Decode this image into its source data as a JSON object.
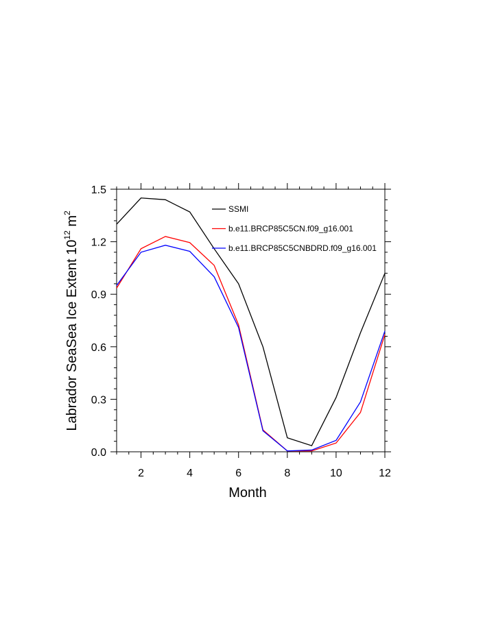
{
  "chart_data": {
    "type": "line",
    "title": "",
    "xlabel": "Month",
    "ylabel": {
      "main": "Labrador SeaSea Ice Extent 10",
      "exponent": "12",
      "unit": " m",
      "unit_exponent": "2"
    },
    "xlim": [
      1,
      12
    ],
    "ylim": [
      0,
      1.5
    ],
    "x": [
      1,
      2,
      3,
      4,
      5,
      6,
      7,
      8,
      9,
      10,
      11,
      12
    ],
    "x_ticks": [
      2,
      4,
      6,
      8,
      10,
      12
    ],
    "x_tick_labels": [
      "2",
      "4",
      "6",
      "8",
      "10",
      "12"
    ],
    "y_ticks": [
      0,
      0.3,
      0.6,
      0.9,
      1.2,
      1.5
    ],
    "y_tick_labels": [
      "0.0",
      "0.3",
      "0.6",
      "0.9",
      "1.2",
      "1.5"
    ],
    "grid": false,
    "legend_position": "top-right",
    "series": [
      {
        "name": "SSMI",
        "color": "#000000",
        "values": [
          1.3,
          1.45,
          1.44,
          1.37,
          1.16,
          0.96,
          0.6,
          0.08,
          0.035,
          0.31,
          0.68,
          1.02
        ]
      },
      {
        "name": "b.e11.BRCP85C5CN.f09_g16.001",
        "color": "#ff0000",
        "values": [
          0.935,
          1.16,
          1.23,
          1.195,
          1.065,
          0.725,
          0.125,
          0.005,
          0.005,
          0.05,
          0.225,
          0.67
        ]
      },
      {
        "name": "b.e11.BRCP85C5CNBDRD.f09_g16.001",
        "color": "#0000ff",
        "values": [
          0.95,
          1.14,
          1.18,
          1.145,
          1.0,
          0.71,
          0.12,
          0.005,
          0.01,
          0.065,
          0.285,
          0.69
        ]
      }
    ]
  }
}
